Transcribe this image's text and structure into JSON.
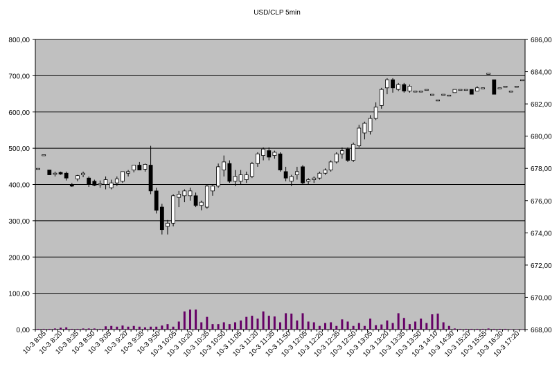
{
  "chart_data": {
    "type": "candlestick",
    "title": "USD/CLP   5min",
    "y_left": {
      "ticks": [
        "800,00",
        "700,00",
        "600,00",
        "500,00",
        "400,00",
        "300,00",
        "200,00",
        "100,00",
        "0,00"
      ],
      "range": [
        0,
        800
      ]
    },
    "y_right": {
      "ticks": [
        "686,00",
        "684,00",
        "682,00",
        "680,00",
        "678,00",
        "676,00",
        "674,00",
        "672,00",
        "670,00",
        "668,00"
      ],
      "range": [
        668,
        686
      ]
    },
    "x_tick_labels": [
      "10-3 8:05",
      "10-3 8:20",
      "10-3 8:35",
      "10-3 8:50",
      "10-3 9:05",
      "10-3 9:20",
      "10-3 9:35",
      "10-3 9:50",
      "10-3 10:05",
      "10-3 10:20",
      "10-3 10:35",
      "10-3 10:50",
      "10-3 11:05",
      "10-3 11:20",
      "10-3 11:35",
      "10-3 11:50",
      "10-3 12:05",
      "10-3 12:20",
      "10-3 12:35",
      "10-3 12:50",
      "10-3 13:05",
      "10-3 13:20",
      "10-3 13:35",
      "10-3 13:50",
      "10-3 14:10",
      "10-3 14:30",
      "10-3 15:20",
      "10-3 15:55",
      "10-3 16:30",
      "10-3 17:20"
    ],
    "price_axis": "right",
    "volume_axis": "left",
    "grid": true,
    "colors": {
      "plot_bg": "#c0c0c0",
      "up_body": "#ffffff",
      "down_body": "#000000",
      "volume": "#660066"
    },
    "candles": [
      {
        "o": 678.0,
        "h": 678.0,
        "l": 678.0,
        "c": 678.0
      },
      {
        "o": 678.85,
        "h": 678.85,
        "l": 678.85,
        "c": 678.85
      },
      {
        "o": 677.9,
        "h": 677.9,
        "l": 677.6,
        "c": 677.6
      },
      {
        "o": 677.7,
        "h": 677.8,
        "l": 677.5,
        "c": 677.7
      },
      {
        "o": 677.75,
        "h": 677.8,
        "l": 677.6,
        "c": 677.65
      },
      {
        "o": 677.7,
        "h": 677.8,
        "l": 677.25,
        "c": 677.4
      },
      {
        "o": 677.0,
        "h": 677.1,
        "l": 676.85,
        "c": 676.9
      },
      {
        "o": 677.35,
        "h": 677.6,
        "l": 677.2,
        "c": 677.55
      },
      {
        "o": 677.6,
        "h": 677.8,
        "l": 677.45,
        "c": 677.7
      },
      {
        "o": 677.4,
        "h": 677.5,
        "l": 676.85,
        "c": 677.0
      },
      {
        "o": 677.2,
        "h": 677.3,
        "l": 676.9,
        "c": 676.95
      },
      {
        "o": 677.0,
        "h": 677.25,
        "l": 676.8,
        "c": 677.05
      },
      {
        "o": 677.0,
        "h": 677.5,
        "l": 676.7,
        "c": 677.3
      },
      {
        "o": 676.8,
        "h": 677.3,
        "l": 676.7,
        "c": 677.1
      },
      {
        "o": 677.1,
        "h": 677.5,
        "l": 676.9,
        "c": 677.35
      },
      {
        "o": 677.2,
        "h": 677.8,
        "l": 677.1,
        "c": 677.8
      },
      {
        "o": 677.7,
        "h": 677.9,
        "l": 677.5,
        "c": 677.8
      },
      {
        "o": 677.9,
        "h": 678.2,
        "l": 677.75,
        "c": 678.2
      },
      {
        "o": 678.2,
        "h": 678.4,
        "l": 677.9,
        "c": 677.9
      },
      {
        "o": 677.95,
        "h": 678.3,
        "l": 677.8,
        "c": 678.25
      },
      {
        "o": 678.2,
        "h": 679.4,
        "l": 676.4,
        "c": 676.6
      },
      {
        "o": 676.6,
        "h": 676.8,
        "l": 675.2,
        "c": 675.4
      },
      {
        "o": 675.6,
        "h": 675.8,
        "l": 673.9,
        "c": 674.2
      },
      {
        "o": 674.4,
        "h": 674.8,
        "l": 673.9,
        "c": 674.6
      },
      {
        "o": 674.6,
        "h": 676.4,
        "l": 674.4,
        "c": 676.3
      },
      {
        "o": 676.2,
        "h": 676.6,
        "l": 675.6,
        "c": 676.4
      },
      {
        "o": 676.3,
        "h": 676.7,
        "l": 675.9,
        "c": 676.6
      },
      {
        "o": 676.3,
        "h": 676.8,
        "l": 676.0,
        "c": 676.6
      },
      {
        "o": 676.3,
        "h": 676.5,
        "l": 675.6,
        "c": 675.7
      },
      {
        "o": 675.7,
        "h": 676.0,
        "l": 675.4,
        "c": 675.9
      },
      {
        "o": 675.6,
        "h": 677.0,
        "l": 675.5,
        "c": 676.9
      },
      {
        "o": 676.6,
        "h": 677.0,
        "l": 676.3,
        "c": 676.9
      },
      {
        "o": 676.9,
        "h": 678.3,
        "l": 676.8,
        "c": 678.1
      },
      {
        "o": 677.9,
        "h": 678.8,
        "l": 677.5,
        "c": 678.4
      },
      {
        "o": 678.3,
        "h": 678.5,
        "l": 677.1,
        "c": 677.2
      },
      {
        "o": 677.2,
        "h": 677.9,
        "l": 676.9,
        "c": 677.5
      },
      {
        "o": 677.2,
        "h": 677.9,
        "l": 677.0,
        "c": 677.6
      },
      {
        "o": 677.3,
        "h": 677.8,
        "l": 677.1,
        "c": 677.6
      },
      {
        "o": 677.5,
        "h": 678.4,
        "l": 677.4,
        "c": 678.3
      },
      {
        "o": 678.3,
        "h": 679.0,
        "l": 678.1,
        "c": 678.9
      },
      {
        "o": 678.8,
        "h": 679.3,
        "l": 678.5,
        "c": 679.2
      },
      {
        "o": 679.1,
        "h": 679.3,
        "l": 678.5,
        "c": 678.7
      },
      {
        "o": 678.8,
        "h": 679.1,
        "l": 678.6,
        "c": 679.0
      },
      {
        "o": 678.9,
        "h": 679.0,
        "l": 677.8,
        "c": 677.9
      },
      {
        "o": 677.8,
        "h": 678.1,
        "l": 677.2,
        "c": 677.4
      },
      {
        "o": 677.2,
        "h": 677.6,
        "l": 676.9,
        "c": 677.5
      },
      {
        "o": 677.6,
        "h": 678.1,
        "l": 677.3,
        "c": 677.8
      },
      {
        "o": 678.1,
        "h": 678.2,
        "l": 677.0,
        "c": 677.1
      },
      {
        "o": 677.2,
        "h": 677.4,
        "l": 677.0,
        "c": 677.3
      },
      {
        "o": 677.3,
        "h": 677.5,
        "l": 677.1,
        "c": 677.4
      },
      {
        "o": 677.4,
        "h": 677.8,
        "l": 677.3,
        "c": 677.7
      },
      {
        "o": 677.7,
        "h": 678.0,
        "l": 677.6,
        "c": 677.9
      },
      {
        "o": 677.9,
        "h": 678.5,
        "l": 677.8,
        "c": 678.4
      },
      {
        "o": 678.4,
        "h": 679.0,
        "l": 678.3,
        "c": 678.9
      },
      {
        "o": 678.9,
        "h": 679.3,
        "l": 678.6,
        "c": 679.1
      },
      {
        "o": 679.2,
        "h": 679.3,
        "l": 678.4,
        "c": 678.5
      },
      {
        "o": 678.5,
        "h": 679.6,
        "l": 678.4,
        "c": 679.5
      },
      {
        "o": 679.4,
        "h": 680.7,
        "l": 679.3,
        "c": 680.5
      },
      {
        "o": 680.2,
        "h": 680.9,
        "l": 679.8,
        "c": 680.8
      },
      {
        "o": 680.3,
        "h": 681.3,
        "l": 680.1,
        "c": 681.1
      },
      {
        "o": 681.1,
        "h": 682.1,
        "l": 681.0,
        "c": 681.8
      },
      {
        "o": 681.9,
        "h": 683.0,
        "l": 681.7,
        "c": 682.9
      },
      {
        "o": 683.0,
        "h": 683.6,
        "l": 682.6,
        "c": 683.5
      },
      {
        "o": 683.5,
        "h": 683.6,
        "l": 682.7,
        "c": 683.0
      },
      {
        "o": 682.9,
        "h": 683.3,
        "l": 682.8,
        "c": 683.2
      },
      {
        "o": 683.2,
        "h": 683.3,
        "l": 682.7,
        "c": 682.8
      },
      {
        "o": 682.8,
        "h": 683.2,
        "l": 682.7,
        "c": 683.1
      },
      {
        "o": 682.8,
        "h": 682.8,
        "l": 682.8,
        "c": 682.8
      },
      {
        "o": 682.8,
        "h": 682.8,
        "l": 682.8,
        "c": 682.8
      },
      {
        "o": 682.9,
        "h": 682.9,
        "l": 682.9,
        "c": 682.9
      },
      {
        "o": 682.6,
        "h": 682.6,
        "l": 682.6,
        "c": 682.6
      },
      {
        "o": 682.25,
        "h": 682.25,
        "l": 682.25,
        "c": 682.25
      },
      {
        "o": 682.6,
        "h": 682.6,
        "l": 682.6,
        "c": 682.6
      },
      {
        "o": 682.55,
        "h": 682.55,
        "l": 682.55,
        "c": 682.55
      },
      {
        "o": 682.7,
        "h": 682.9,
        "l": 682.7,
        "c": 682.9
      },
      {
        "o": 682.9,
        "h": 682.9,
        "l": 682.9,
        "c": 682.9
      },
      {
        "o": 682.9,
        "h": 682.9,
        "l": 682.9,
        "c": 682.9
      },
      {
        "o": 682.9,
        "h": 682.9,
        "l": 682.6,
        "c": 682.6
      },
      {
        "o": 682.8,
        "h": 683.1,
        "l": 682.8,
        "c": 683.0
      },
      {
        "o": 683.0,
        "h": 683.0,
        "l": 683.0,
        "c": 683.0
      },
      {
        "o": 683.9,
        "h": 683.9,
        "l": 683.9,
        "c": 683.9
      },
      {
        "o": 683.5,
        "h": 683.5,
        "l": 682.6,
        "c": 682.6
      },
      {
        "o": 683.0,
        "h": 683.0,
        "l": 683.0,
        "c": 683.0
      },
      {
        "o": 683.1,
        "h": 683.1,
        "l": 683.1,
        "c": 683.1
      },
      {
        "o": 682.8,
        "h": 682.8,
        "l": 682.8,
        "c": 682.8
      },
      {
        "o": 683.1,
        "h": 683.1,
        "l": 683.1,
        "c": 683.1
      },
      {
        "o": 683.5,
        "h": 683.5,
        "l": 683.5,
        "c": 683.5
      }
    ],
    "volume": [
      2,
      2,
      2,
      3,
      5,
      6,
      2,
      2,
      3,
      3,
      3,
      2,
      9,
      10,
      8,
      11,
      8,
      10,
      8,
      6,
      8,
      8,
      11,
      15,
      8,
      22,
      50,
      55,
      55,
      20,
      35,
      15,
      15,
      20,
      15,
      20,
      25,
      35,
      38,
      30,
      50,
      38,
      36,
      20,
      45,
      44,
      25,
      45,
      22,
      20,
      10,
      18,
      20,
      10,
      28,
      22,
      10,
      18,
      10,
      30,
      12,
      14,
      25,
      18,
      45,
      32,
      15,
      22,
      30,
      18,
      42,
      44,
      20,
      10,
      3,
      2,
      2,
      2,
      2,
      2,
      3,
      2,
      2,
      2,
      1,
      1,
      1
    ]
  }
}
